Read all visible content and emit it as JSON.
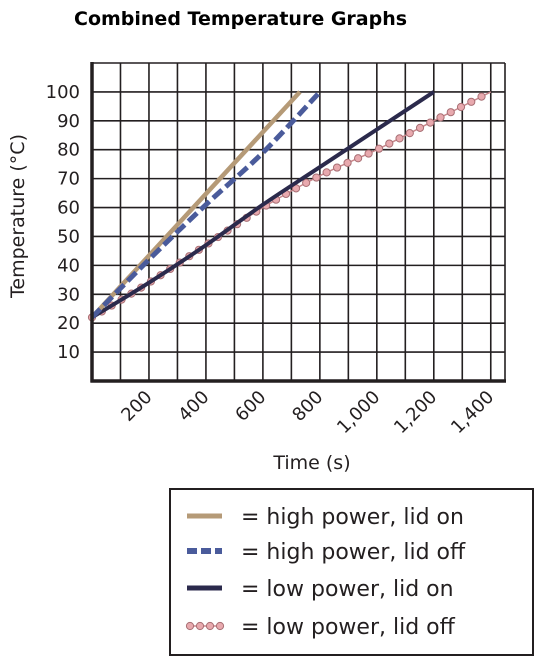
{
  "chart_data": {
    "type": "line",
    "title": "Combined Temperature Graphs",
    "xlabel": "Time (s)",
    "ylabel": "Temperature (°C)",
    "xlim": [
      0,
      1450
    ],
    "ylim": [
      0,
      110
    ],
    "x_ticks": [
      200,
      400,
      600,
      800,
      1000,
      1200,
      1400
    ],
    "x_tick_labels": [
      "200",
      "400",
      "600",
      "800",
      "1,000",
      "1,200",
      "1,400"
    ],
    "y_ticks": [
      10,
      20,
      30,
      40,
      50,
      60,
      70,
      80,
      90,
      100
    ],
    "y_tick_labels": [
      "10",
      "20",
      "30",
      "40",
      "50",
      "60",
      "70",
      "80",
      "90",
      "100"
    ],
    "grid": true,
    "legend_position": "bottom",
    "series": [
      {
        "name": "= high power, lid on",
        "style": "solid",
        "color": "#b59a77",
        "points": [
          [
            0,
            22
          ],
          [
            730,
            100
          ]
        ]
      },
      {
        "name": "= high power, lid off",
        "style": "dashed",
        "color": "#4a5b9b",
        "points": [
          [
            0,
            22
          ],
          [
            200,
            42
          ],
          [
            400,
            61
          ],
          [
            600,
            79
          ],
          [
            800,
            100
          ]
        ]
      },
      {
        "name": "= low power, lid on",
        "style": "solid",
        "color": "#2b2a4c",
        "points": [
          [
            0,
            22
          ],
          [
            200,
            34
          ],
          [
            400,
            47
          ],
          [
            600,
            61
          ],
          [
            800,
            74
          ],
          [
            1000,
            87
          ],
          [
            1200,
            100
          ]
        ]
      },
      {
        "name": "= low power, lid off",
        "style": "dotted-marker",
        "color": "#e8a9ae",
        "points": [
          [
            0,
            22
          ],
          [
            200,
            34
          ],
          [
            400,
            47
          ],
          [
            600,
            60
          ],
          [
            800,
            71
          ],
          [
            1000,
            80
          ],
          [
            1200,
            90
          ],
          [
            1400,
            100
          ]
        ]
      }
    ]
  }
}
